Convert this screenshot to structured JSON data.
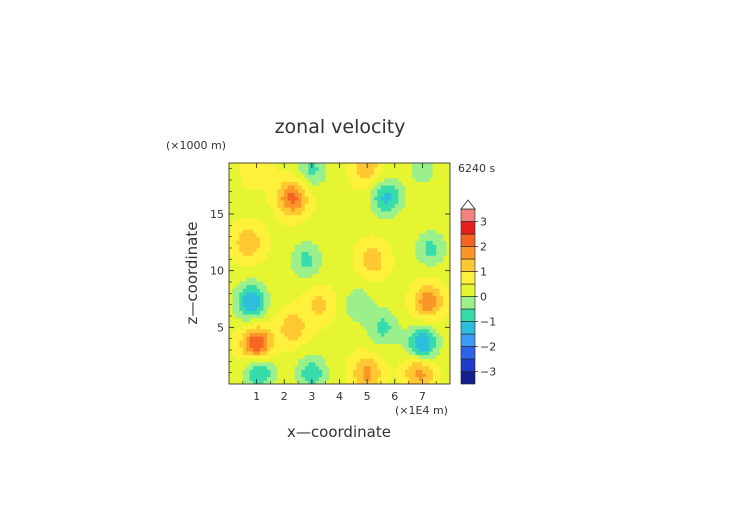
{
  "chart_data": {
    "type": "heatmap",
    "title": "zonal velocity",
    "xlabel": "x—coordinate",
    "ylabel": "z—coordinate",
    "x_unit": "(×1E4 m)",
    "y_unit": "(×1000 m)",
    "time_label": "6240 s",
    "xlim": [
      0,
      8
    ],
    "ylim": [
      0,
      19.5
    ],
    "x_ticks": [
      1,
      2,
      3,
      4,
      5,
      6,
      7
    ],
    "y_ticks": [
      5,
      10,
      15
    ],
    "x_tick_labels": [
      "1",
      "2",
      "3",
      "4",
      "5",
      "6",
      "7"
    ],
    "y_tick_labels": [
      "5",
      "10",
      "15"
    ],
    "colorbar": {
      "levels": [
        -3.5,
        -3,
        -2.5,
        -2,
        -1.5,
        -1,
        -0.5,
        0,
        0.5,
        1,
        1.5,
        2,
        2.5,
        3,
        3.5
      ],
      "colors": [
        "#141e8c",
        "#1e3cc8",
        "#2d64e6",
        "#3c9bf0",
        "#2dbedc",
        "#37dcaa",
        "#9bf08c",
        "#e6f532",
        "#fff03c",
        "#ffc832",
        "#fa9628",
        "#f56423",
        "#e61e1e",
        "#f08282"
      ],
      "tick_values": [
        3,
        2,
        1,
        0,
        -1,
        -2,
        -3
      ],
      "tick_labels": [
        "3",
        "2",
        "1",
        "0",
        "−1",
        "−2",
        "−3"
      ],
      "extend": "max"
    },
    "field_features": [
      {
        "x": 1.0,
        "z": 3.5,
        "value": 2.2
      },
      {
        "x": 7.0,
        "z": 3.5,
        "value": -2.0
      },
      {
        "x": 1.1,
        "z": 1.2,
        "value": -1.5
      },
      {
        "x": 6.9,
        "z": 1.2,
        "value": 1.5
      },
      {
        "x": 0.8,
        "z": 7.3,
        "value": -1.8
      },
      {
        "x": 7.2,
        "z": 7.3,
        "value": 1.5
      },
      {
        "x": 0.7,
        "z": 12.5,
        "value": 1.1
      },
      {
        "x": 7.3,
        "z": 12.0,
        "value": -1.0
      },
      {
        "x": 2.3,
        "z": 16.5,
        "value": 1.8
      },
      {
        "x": 5.7,
        "z": 16.5,
        "value": -1.5
      },
      {
        "x": 2.3,
        "z": 5.0,
        "value": 1.0
      },
      {
        "x": 5.6,
        "z": 5.0,
        "value": -1.0
      },
      {
        "x": 3.0,
        "z": 1.0,
        "value": -1.2
      },
      {
        "x": 5.0,
        "z": 1.0,
        "value": 1.3
      },
      {
        "x": 2.8,
        "z": 11.0,
        "value": -1.0
      },
      {
        "x": 5.2,
        "z": 11.0,
        "value": 1.0
      },
      {
        "x": 3.3,
        "z": 7.0,
        "value": 0.8
      },
      {
        "x": 4.7,
        "z": 7.0,
        "value": -0.8
      },
      {
        "x": 3.0,
        "z": 19.0,
        "value": -1.0
      },
      {
        "x": 5.0,
        "z": 19.0,
        "value": 1.0
      },
      {
        "x": 1.0,
        "z": 19.0,
        "value": 0.6
      },
      {
        "x": 7.0,
        "z": 19.0,
        "value": -0.6
      }
    ]
  }
}
